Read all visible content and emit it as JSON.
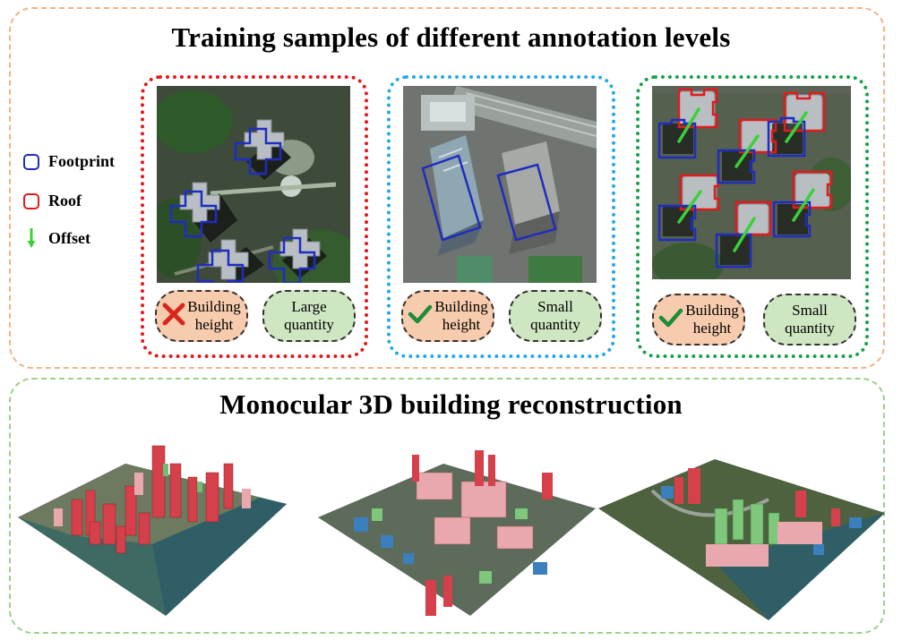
{
  "titles": {
    "top": "Training samples of different annotation levels",
    "bottom": "Monocular 3D building reconstruction"
  },
  "legend": {
    "footprint": "Footprint",
    "roof": "Roof",
    "offset": "Offset"
  },
  "colors": {
    "footprint": "#1f2dbf",
    "roof": "#e11b1b",
    "offset": "#3ad13a",
    "panel_top_border": "#f0b48a",
    "panel_bottom_border": "#9fcf8a"
  },
  "cards": [
    {
      "border": "dotted-red",
      "height_label_1": "Building",
      "height_label_2": "height",
      "height_mark": "cross-icon",
      "quantity_label_1": "Large",
      "quantity_label_2": "quantity"
    },
    {
      "border": "dotted-blue",
      "height_label_1": "Building",
      "height_label_2": "height",
      "height_mark": "check-icon",
      "quantity_label_1": "Small",
      "quantity_label_2": "quantity"
    },
    {
      "border": "dotted-green",
      "height_label_1": "Building",
      "height_label_2": "height",
      "height_mark": "check-icon",
      "quantity_label_1": "Small",
      "quantity_label_2": "quantity"
    }
  ]
}
